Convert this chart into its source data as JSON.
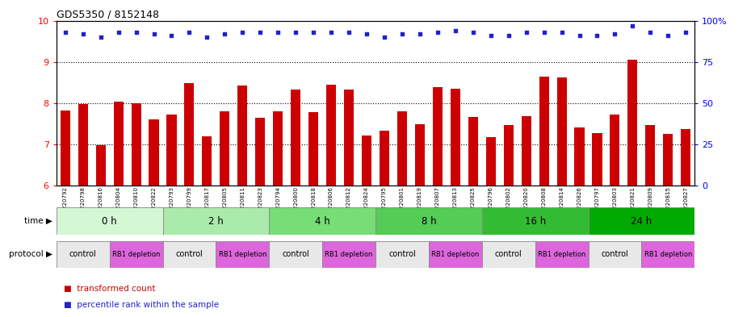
{
  "title": "GDS5350 / 8152148",
  "samples": [
    "GSM1220792",
    "GSM1220798",
    "GSM1220816",
    "GSM1220804",
    "GSM1220810",
    "GSM1220822",
    "GSM1220793",
    "GSM1220799",
    "GSM1220817",
    "GSM1220805",
    "GSM1220811",
    "GSM1220823",
    "GSM1220794",
    "GSM1220800",
    "GSM1220818",
    "GSM1220806",
    "GSM1220812",
    "GSM1220824",
    "GSM1220795",
    "GSM1220801",
    "GSM1220819",
    "GSM1220807",
    "GSM1220813",
    "GSM1220825",
    "GSM1220796",
    "GSM1220802",
    "GSM1220820",
    "GSM1220808",
    "GSM1220814",
    "GSM1220826",
    "GSM1220797",
    "GSM1220803",
    "GSM1220821",
    "GSM1220809",
    "GSM1220815",
    "GSM1220827"
  ],
  "bar_values": [
    7.82,
    7.98,
    6.97,
    8.03,
    8.0,
    7.6,
    7.73,
    8.48,
    7.2,
    7.8,
    8.43,
    7.65,
    7.8,
    8.33,
    7.77,
    8.45,
    8.33,
    7.22,
    7.33,
    7.8,
    7.48,
    8.38,
    8.35,
    7.67,
    7.17,
    7.47,
    7.68,
    8.65,
    8.63,
    7.4,
    7.27,
    7.73,
    9.05,
    7.47,
    7.26,
    7.37
  ],
  "dot_values": [
    93,
    92,
    90,
    93,
    93,
    92,
    91,
    93,
    90,
    92,
    93,
    93,
    93,
    93,
    93,
    93,
    93,
    92,
    90,
    92,
    92,
    93,
    94,
    93,
    91,
    91,
    93,
    93,
    93,
    91,
    91,
    92,
    97,
    93,
    91,
    93
  ],
  "ylim_left": [
    6,
    10
  ],
  "ylim_right": [
    0,
    100
  ],
  "yticks_left": [
    6,
    7,
    8,
    9,
    10
  ],
  "yticks_right": [
    0,
    25,
    50,
    75,
    100
  ],
  "bar_color": "#cc0000",
  "dot_color": "#2222cc",
  "grid_color": "#000000",
  "time_groups": [
    {
      "label": "0 h",
      "start": 0,
      "end": 6,
      "color": "#d4f7d4"
    },
    {
      "label": "2 h",
      "start": 6,
      "end": 12,
      "color": "#aaeaaa"
    },
    {
      "label": "4 h",
      "start": 12,
      "end": 18,
      "color": "#77dd77"
    },
    {
      "label": "8 h",
      "start": 18,
      "end": 24,
      "color": "#55cc55"
    },
    {
      "label": "16 h",
      "start": 24,
      "end": 30,
      "color": "#33bb33"
    },
    {
      "label": "24 h",
      "start": 30,
      "end": 36,
      "color": "#00aa00"
    }
  ],
  "protocol_groups": [
    {
      "label": "control",
      "start": 0,
      "end": 3,
      "color": "#e8e8e8"
    },
    {
      "label": "RB1 depletion",
      "start": 3,
      "end": 6,
      "color": "#dd66dd"
    },
    {
      "label": "control",
      "start": 6,
      "end": 9,
      "color": "#e8e8e8"
    },
    {
      "label": "RB1 depletion",
      "start": 9,
      "end": 12,
      "color": "#dd66dd"
    },
    {
      "label": "control",
      "start": 12,
      "end": 15,
      "color": "#e8e8e8"
    },
    {
      "label": "RB1 depletion",
      "start": 15,
      "end": 18,
      "color": "#dd66dd"
    },
    {
      "label": "control",
      "start": 18,
      "end": 21,
      "color": "#e8e8e8"
    },
    {
      "label": "RB1 depletion",
      "start": 21,
      "end": 24,
      "color": "#dd66dd"
    },
    {
      "label": "control",
      "start": 24,
      "end": 27,
      "color": "#e8e8e8"
    },
    {
      "label": "RB1 depletion",
      "start": 27,
      "end": 30,
      "color": "#dd66dd"
    },
    {
      "label": "control",
      "start": 30,
      "end": 33,
      "color": "#e8e8e8"
    },
    {
      "label": "RB1 depletion",
      "start": 33,
      "end": 36,
      "color": "#dd66dd"
    }
  ],
  "legend_bar_label": "transformed count",
  "legend_dot_label": "percentile rank within the sample",
  "time_label": "time",
  "protocol_label": "protocol",
  "fig_width": 9.3,
  "fig_height": 3.93,
  "dpi": 100
}
